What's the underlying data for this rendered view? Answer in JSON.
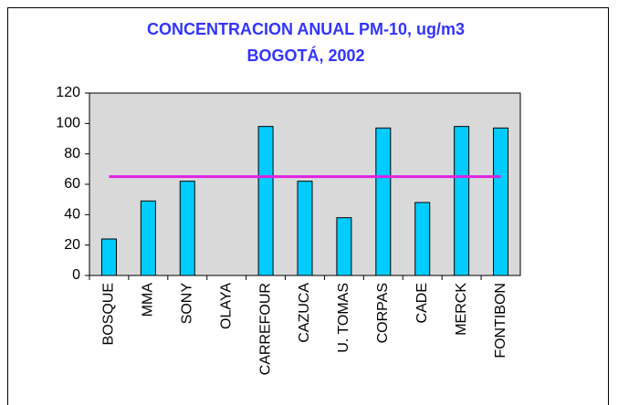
{
  "chart_data": {
    "type": "bar",
    "title": [
      "CONCENTRACION ANUAL PM-10, ug/m3",
      "BOGOTÁ, 2002"
    ],
    "categories": [
      "BOSQUE",
      "MMA",
      "SONY",
      "OLAYA",
      "CARREFOUR",
      "CAZUCA",
      "U. TOMAS",
      "CORPAS",
      "CADE",
      "MERCK",
      "FONTIBON"
    ],
    "values": [
      24,
      49,
      62,
      null,
      98,
      62,
      38,
      97,
      48,
      98,
      97
    ],
    "color": "#00ccff",
    "reference_line": {
      "value": 65,
      "color": "#e020e0"
    },
    "ylim": [
      0,
      120
    ],
    "yticks": [
      0,
      20,
      40,
      60,
      80,
      100,
      120
    ],
    "grid": false
  }
}
